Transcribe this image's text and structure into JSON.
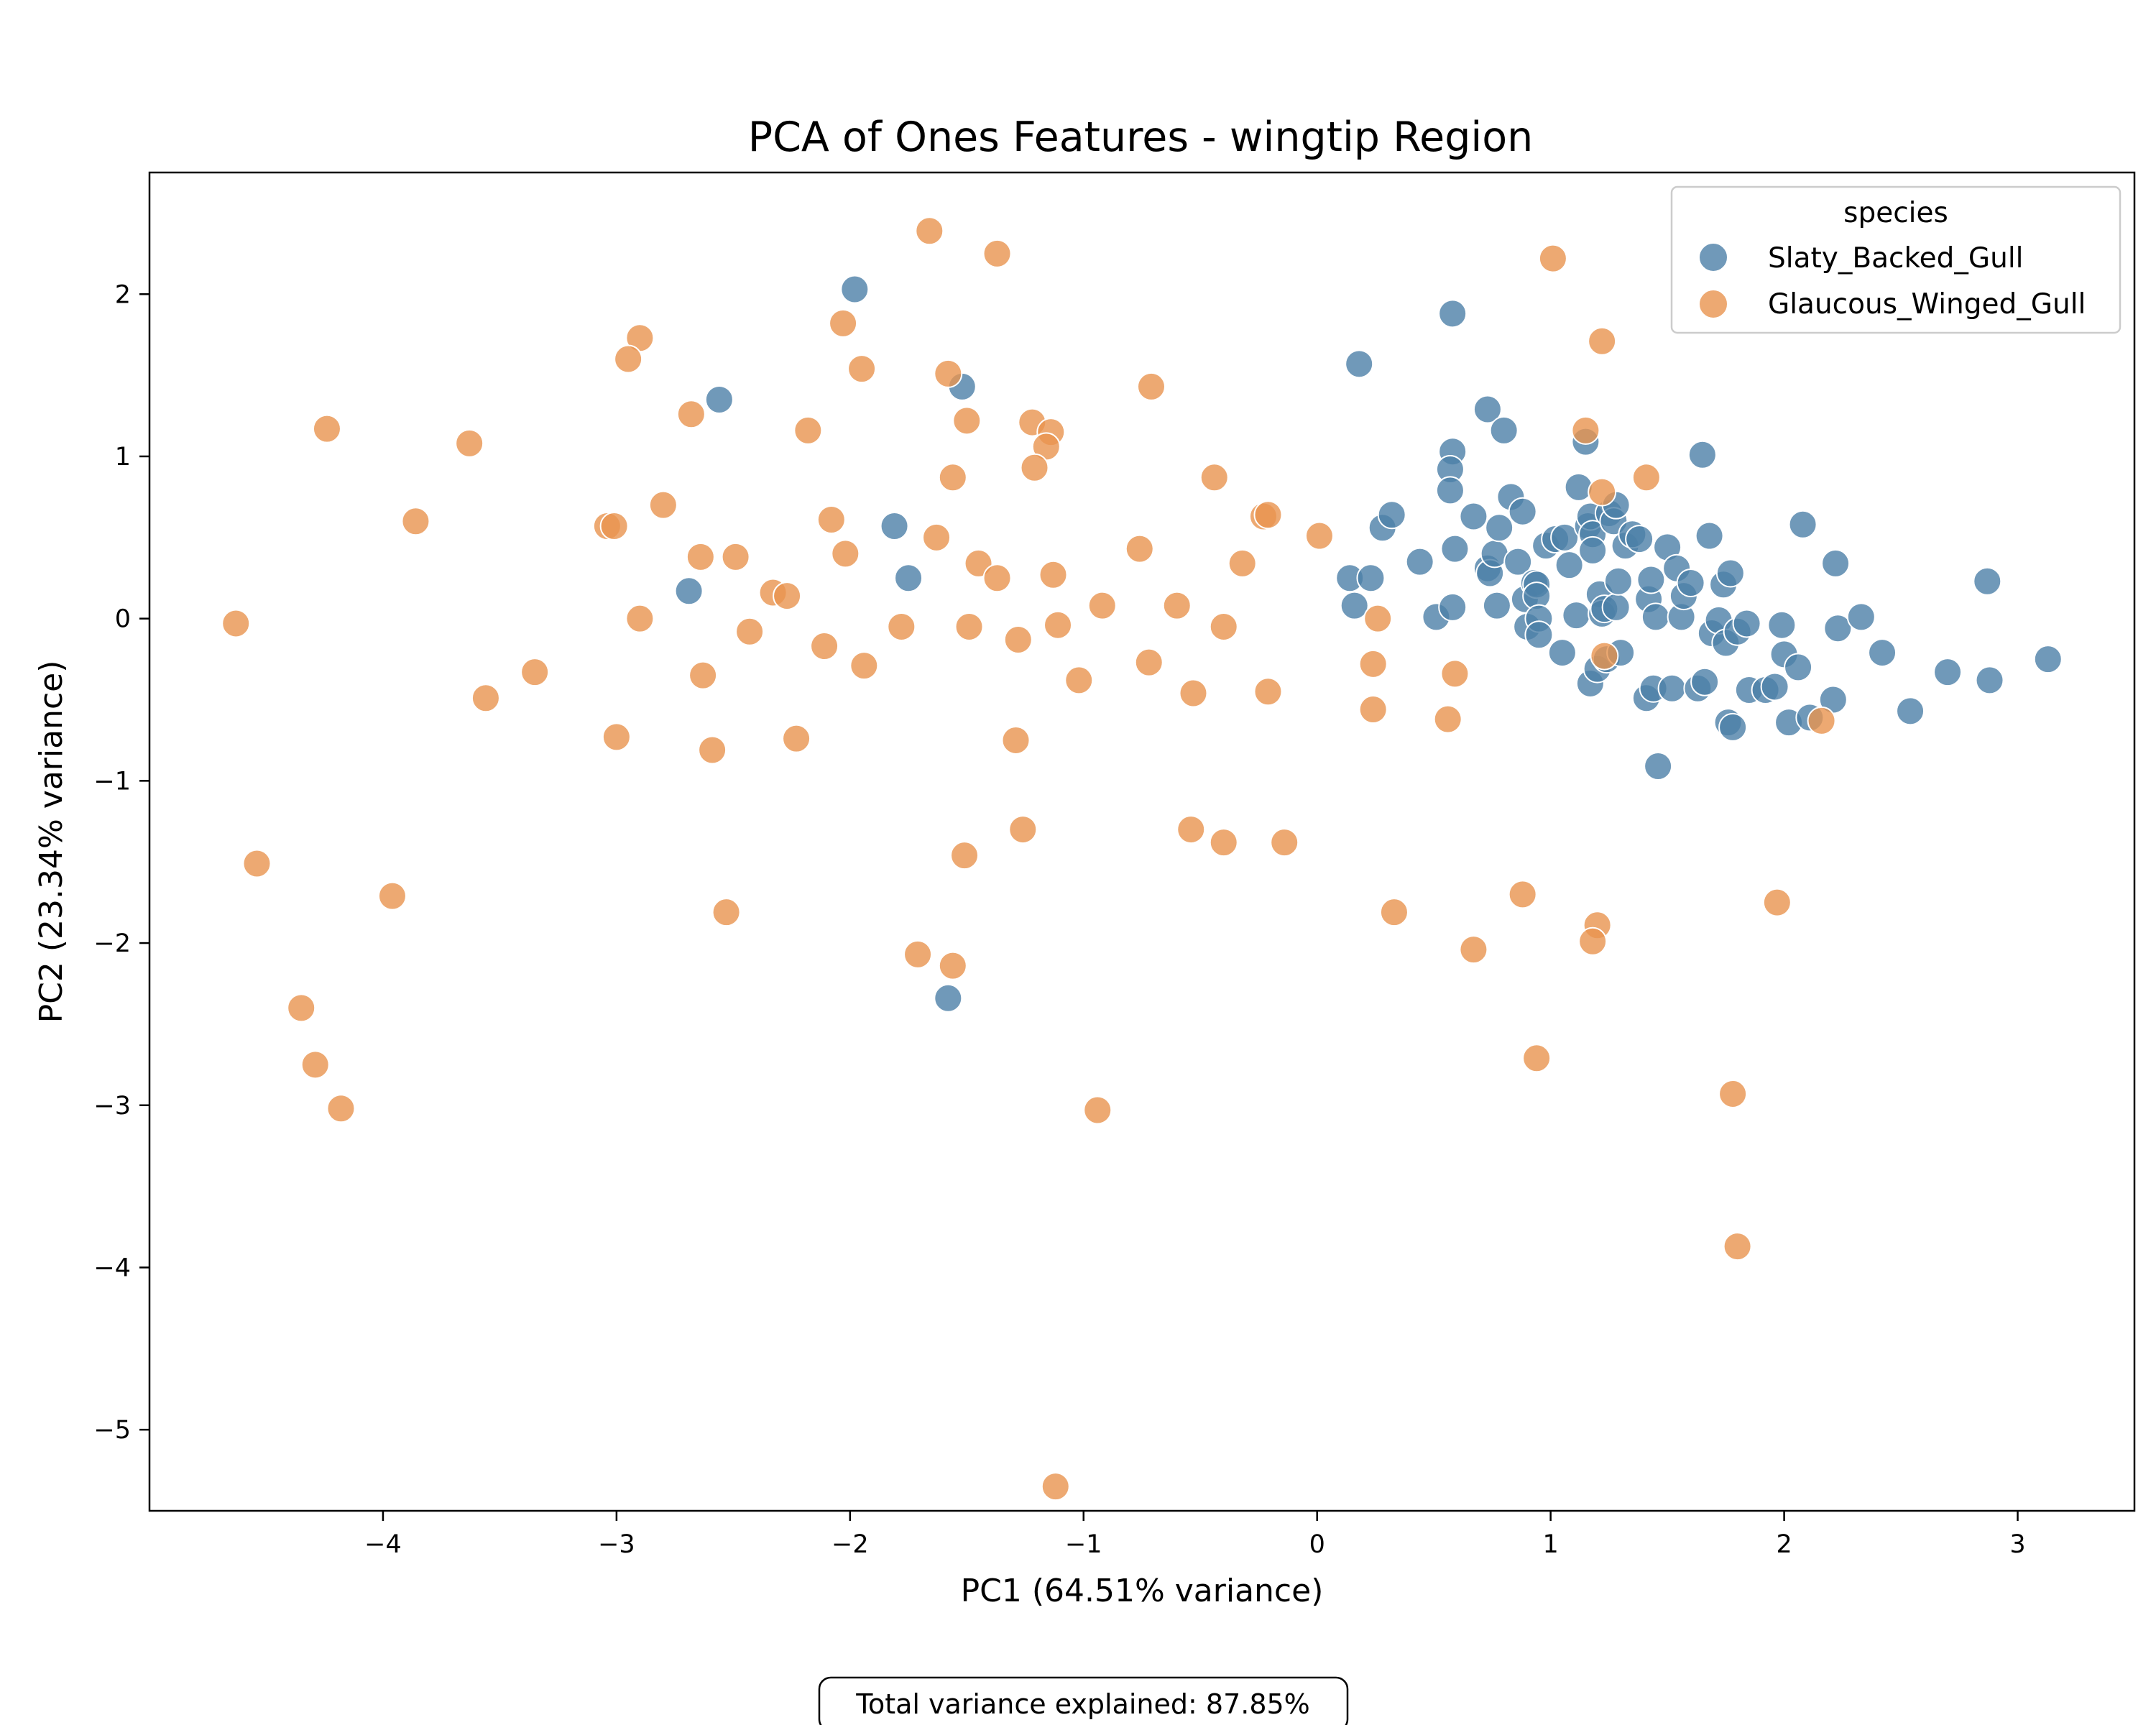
{
  "chart_data": {
    "type": "scatter",
    "title": "PCA of Ones Features - wingtip Region",
    "xlabel": "PC1 (64.51% variance)",
    "ylabel": "PC2 (23.34% variance)",
    "xlim": [
      -5.0,
      3.5
    ],
    "ylim": [
      -5.5,
      2.75
    ],
    "x_ticks": [
      -4,
      -3,
      -2,
      -1,
      0,
      1,
      2,
      3
    ],
    "x_tick_labels": [
      "−4",
      "−3",
      "−2",
      "−1",
      "0",
      "1",
      "2",
      "3"
    ],
    "y_ticks": [
      -5,
      -4,
      -3,
      -2,
      -1,
      0,
      1,
      2
    ],
    "y_tick_labels": [
      "−5",
      "−4",
      "−3",
      "−2",
      "−1",
      "0",
      "1",
      "2"
    ],
    "grid": false,
    "legend": {
      "title": "species",
      "placement": "upper-right"
    },
    "annotation": "Total variance explained: 87.85%",
    "series": [
      {
        "name": "Slaty_Backed_Gull",
        "color": "#4c7fa8",
        "points": [
          [
            -1.98,
            2.03
          ],
          [
            -2.56,
            1.35
          ],
          [
            -1.52,
            1.43
          ],
          [
            -1.81,
            0.57
          ],
          [
            -1.75,
            0.25
          ],
          [
            -2.69,
            0.17
          ],
          [
            -1.58,
            -2.34
          ],
          [
            0.18,
            1.57
          ],
          [
            0.58,
            1.88
          ],
          [
            0.73,
            1.29
          ],
          [
            0.8,
            1.16
          ],
          [
            0.58,
            1.03
          ],
          [
            0.57,
            0.92
          ],
          [
            0.57,
            0.79
          ],
          [
            0.14,
            0.25
          ],
          [
            0.23,
            0.25
          ],
          [
            0.16,
            0.08
          ],
          [
            0.28,
            0.56
          ],
          [
            0.32,
            0.64
          ],
          [
            0.44,
            0.35
          ],
          [
            0.59,
            0.43
          ],
          [
            0.51,
            0.01
          ],
          [
            0.58,
            0.07
          ],
          [
            0.67,
            0.63
          ],
          [
            0.73,
            0.31
          ],
          [
            0.74,
            0.28
          ],
          [
            0.76,
            0.4
          ],
          [
            0.78,
            0.56
          ],
          [
            0.77,
            0.08
          ],
          [
            0.83,
            0.75
          ],
          [
            0.86,
            0.35
          ],
          [
            0.88,
            0.66
          ],
          [
            0.89,
            0.12
          ],
          [
            0.9,
            -0.05
          ],
          [
            0.93,
            0.22
          ],
          [
            0.94,
            0.21
          ],
          [
            0.94,
            0.14
          ],
          [
            0.95,
            0.0
          ],
          [
            0.95,
            -0.1
          ],
          [
            0.98,
            0.45
          ],
          [
            1.02,
            0.49
          ],
          [
            1.05,
            -0.21
          ],
          [
            1.06,
            0.5
          ],
          [
            1.08,
            0.33
          ],
          [
            1.11,
            0.02
          ],
          [
            1.12,
            0.81
          ],
          [
            1.15,
            1.09
          ],
          [
            1.16,
            0.57
          ],
          [
            1.17,
            0.63
          ],
          [
            1.17,
            -0.4
          ],
          [
            1.18,
            0.52
          ],
          [
            1.18,
            0.42
          ],
          [
            1.2,
            -0.31
          ],
          [
            1.21,
            0.15
          ],
          [
            1.22,
            0.03
          ],
          [
            1.23,
            0.06
          ],
          [
            1.24,
            -0.25
          ],
          [
            1.25,
            0.65
          ],
          [
            1.27,
            0.6
          ],
          [
            1.28,
            0.7
          ],
          [
            1.28,
            0.07
          ],
          [
            1.29,
            0.23
          ],
          [
            1.3,
            -0.21
          ],
          [
            1.32,
            0.45
          ],
          [
            1.35,
            0.52
          ],
          [
            1.38,
            0.49
          ],
          [
            1.41,
            -0.49
          ],
          [
            1.42,
            0.12
          ],
          [
            1.43,
            0.24
          ],
          [
            1.44,
            -0.43
          ],
          [
            1.45,
            0.01
          ],
          [
            1.46,
            -0.91
          ],
          [
            1.5,
            0.44
          ],
          [
            1.52,
            -0.43
          ],
          [
            1.54,
            0.31
          ],
          [
            1.56,
            0.01
          ],
          [
            1.57,
            0.14
          ],
          [
            1.6,
            0.22
          ],
          [
            1.63,
            -0.43
          ],
          [
            1.65,
            1.01
          ],
          [
            1.66,
            -0.39
          ],
          [
            1.68,
            0.51
          ],
          [
            1.69,
            -0.09
          ],
          [
            1.72,
            -0.01
          ],
          [
            1.74,
            0.21
          ],
          [
            1.75,
            -0.15
          ],
          [
            1.76,
            -0.64
          ],
          [
            1.77,
            0.28
          ],
          [
            1.78,
            -0.67
          ],
          [
            1.8,
            -0.08
          ],
          [
            1.84,
            -0.03
          ],
          [
            1.85,
            -0.44
          ],
          [
            1.92,
            -0.44
          ],
          [
            1.96,
            -0.42
          ],
          [
            1.99,
            -0.04
          ],
          [
            2.0,
            -0.22
          ],
          [
            2.02,
            -0.64
          ],
          [
            2.06,
            -0.3
          ],
          [
            2.08,
            0.58
          ],
          [
            2.11,
            -0.61
          ],
          [
            2.21,
            -0.5
          ],
          [
            2.22,
            0.34
          ],
          [
            2.23,
            -0.06
          ],
          [
            2.33,
            0.01
          ],
          [
            2.42,
            -0.21
          ],
          [
            2.54,
            -0.57
          ],
          [
            2.7,
            -0.33
          ],
          [
            2.87,
            0.23
          ],
          [
            2.88,
            -0.38
          ],
          [
            3.13,
            -0.25
          ]
        ]
      },
      {
        "name": "Glaucous_Winged_Gull",
        "color": "#e8944f",
        "points": [
          [
            -1.66,
            2.39
          ],
          [
            -1.37,
            2.25
          ],
          [
            -2.03,
            1.82
          ],
          [
            -2.9,
            1.73
          ],
          [
            -2.95,
            1.6
          ],
          [
            -1.95,
            1.54
          ],
          [
            -1.58,
            1.51
          ],
          [
            -0.71,
            1.43
          ],
          [
            -2.68,
            1.26
          ],
          [
            -1.5,
            1.22
          ],
          [
            -1.22,
            1.21
          ],
          [
            -1.14,
            1.15
          ],
          [
            -2.18,
            1.16
          ],
          [
            -1.16,
            1.06
          ],
          [
            -4.24,
            1.17
          ],
          [
            -3.63,
            1.08
          ],
          [
            -1.21,
            0.93
          ],
          [
            -1.56,
            0.87
          ],
          [
            -0.44,
            0.87
          ],
          [
            -3.86,
            0.6
          ],
          [
            -3.04,
            0.57
          ],
          [
            -3.01,
            0.57
          ],
          [
            -2.8,
            0.7
          ],
          [
            -2.08,
            0.61
          ],
          [
            -1.63,
            0.5
          ],
          [
            -2.02,
            0.4
          ],
          [
            -2.64,
            0.38
          ],
          [
            -2.49,
            0.38
          ],
          [
            -1.45,
            0.34
          ],
          [
            -0.76,
            0.43
          ],
          [
            -0.32,
            0.34
          ],
          [
            -0.23,
            0.63
          ],
          [
            -0.21,
            0.64
          ],
          [
            0.01,
            0.51
          ],
          [
            -1.37,
            0.25
          ],
          [
            -1.13,
            0.27
          ],
          [
            -2.33,
            0.16
          ],
          [
            -2.27,
            0.14
          ],
          [
            -0.92,
            0.08
          ],
          [
            -0.6,
            0.08
          ],
          [
            -2.9,
            0.0
          ],
          [
            -4.63,
            -0.03
          ],
          [
            -2.43,
            -0.08
          ],
          [
            -1.78,
            -0.05
          ],
          [
            -1.49,
            -0.05
          ],
          [
            -1.11,
            -0.04
          ],
          [
            -0.4,
            -0.05
          ],
          [
            0.26,
            0.0
          ],
          [
            -1.28,
            -0.13
          ],
          [
            -2.11,
            -0.17
          ],
          [
            -1.94,
            -0.29
          ],
          [
            -0.72,
            -0.27
          ],
          [
            0.24,
            -0.28
          ],
          [
            1.23,
            -0.23
          ],
          [
            -3.35,
            -0.33
          ],
          [
            -2.63,
            -0.35
          ],
          [
            -1.02,
            -0.38
          ],
          [
            0.59,
            -0.34
          ],
          [
            -3.56,
            -0.49
          ],
          [
            -0.53,
            -0.46
          ],
          [
            -0.21,
            -0.45
          ],
          [
            0.24,
            -0.56
          ],
          [
            0.56,
            -0.62
          ],
          [
            -3.0,
            -0.73
          ],
          [
            -2.23,
            -0.74
          ],
          [
            -1.29,
            -0.75
          ],
          [
            -2.59,
            -0.81
          ],
          [
            2.16,
            -0.63
          ],
          [
            -4.54,
            -1.51
          ],
          [
            -1.51,
            -1.46
          ],
          [
            -1.26,
            -1.3
          ],
          [
            -0.54,
            -1.3
          ],
          [
            -0.4,
            -1.38
          ],
          [
            -0.14,
            -1.38
          ],
          [
            -3.96,
            -1.71
          ],
          [
            -2.53,
            -1.81
          ],
          [
            0.33,
            -1.81
          ],
          [
            0.88,
            -1.7
          ],
          [
            1.2,
            -1.89
          ],
          [
            1.18,
            -1.99
          ],
          [
            1.97,
            -1.75
          ],
          [
            0.67,
            -2.04
          ],
          [
            -1.71,
            -2.07
          ],
          [
            -1.56,
            -2.14
          ],
          [
            -4.35,
            -2.4
          ],
          [
            -4.29,
            -2.75
          ],
          [
            -4.18,
            -3.02
          ],
          [
            -0.94,
            -3.03
          ],
          [
            0.94,
            -2.71
          ],
          [
            1.78,
            -2.93
          ],
          [
            1.8,
            -3.87
          ],
          [
            -1.12,
            -5.35
          ],
          [
            1.01,
            2.22
          ],
          [
            1.22,
            1.71
          ],
          [
            1.15,
            1.16
          ],
          [
            1.41,
            0.87
          ],
          [
            1.22,
            0.78
          ]
        ]
      }
    ]
  }
}
